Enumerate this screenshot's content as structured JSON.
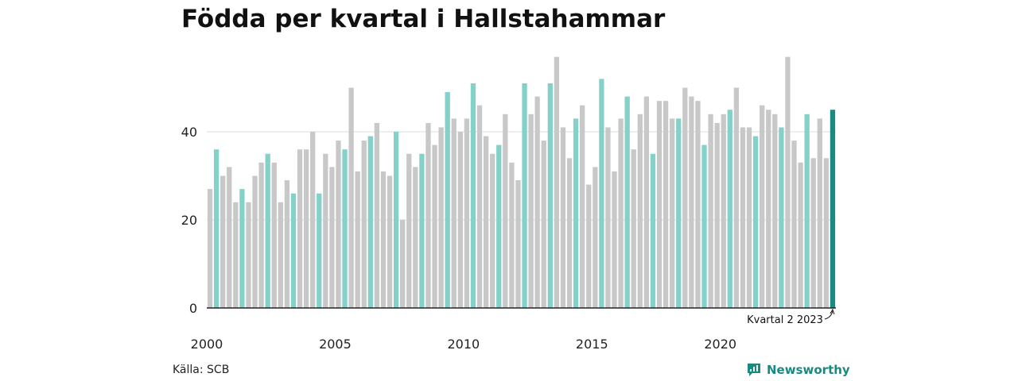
{
  "chart_data": {
    "type": "bar",
    "title": "Födda per kvartal i Hallstahammar",
    "xlabel": "",
    "ylabel": "",
    "ylim": [
      0,
      58
    ],
    "yticks": [
      0,
      20,
      40
    ],
    "x_tick_labels": [
      "2000",
      "2005",
      "2010",
      "2015",
      "2020"
    ],
    "start_year": 2000,
    "grid": true,
    "highlight_quarter": 2,
    "annotation": "Kvartal 2 2023",
    "values": [
      27,
      36,
      30,
      32,
      24,
      27,
      24,
      30,
      33,
      35,
      33,
      24,
      29,
      26,
      36,
      36,
      40,
      26,
      35,
      32,
      38,
      36,
      50,
      31,
      38,
      39,
      42,
      31,
      30,
      40,
      20,
      35,
      32,
      35,
      42,
      37,
      41,
      49,
      43,
      40,
      43,
      51,
      46,
      39,
      35,
      37,
      44,
      33,
      29,
      51,
      44,
      48,
      38,
      51,
      57,
      41,
      34,
      43,
      46,
      28,
      32,
      52,
      41,
      31,
      43,
      48,
      36,
      44,
      48,
      35,
      47,
      47,
      43,
      43,
      50,
      48,
      47,
      37,
      44,
      42,
      44,
      45,
      50,
      41,
      41,
      39,
      46,
      45,
      44,
      41,
      57,
      38,
      33,
      44,
      34,
      43,
      34,
      45
    ]
  },
  "colors": {
    "gray": "#c8c8c8",
    "teal": "#84d1c9",
    "dark_teal": "#1a8a80",
    "grid": "#dcdcdc",
    "axis": "#222222"
  },
  "footer": {
    "source": "Källa: SCB",
    "brand": "Newsworthy",
    "brand_icon": "newsworthy-logo-icon"
  }
}
